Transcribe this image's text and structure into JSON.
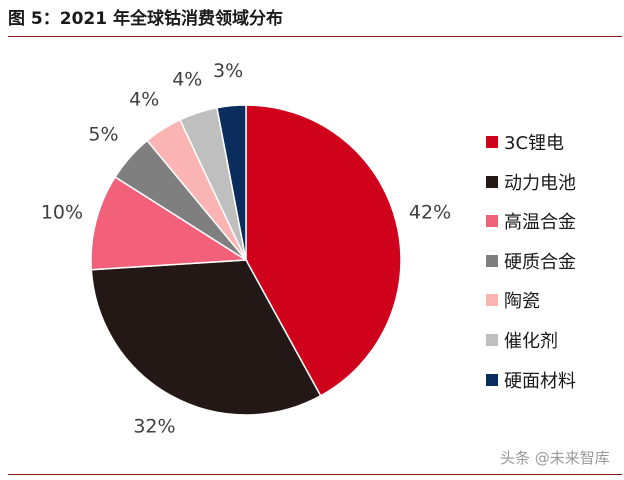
{
  "header": {
    "title": "图 5：2021 年全球钴消费领域分布"
  },
  "chart_data": {
    "type": "pie",
    "title": "图 5：2021 年全球钴消费领域分布",
    "slices": [
      {
        "label": "3C锂电",
        "value": 42,
        "display": "42%",
        "color": "#d0021b"
      },
      {
        "label": "动力电池",
        "value": 32,
        "display": "32%",
        "color": "#231815"
      },
      {
        "label": "高温合金",
        "value": 10,
        "display": "10%",
        "color": "#f2607a"
      },
      {
        "label": "硬质合金",
        "value": 5,
        "display": "5%",
        "color": "#7f7f7f"
      },
      {
        "label": "陶瓷",
        "value": 4,
        "display": "4%",
        "color": "#fbb4b4"
      },
      {
        "label": "催化剂",
        "value": 4,
        "display": "4%",
        "color": "#bfbfbf"
      },
      {
        "label": "硬面材料",
        "value": 3,
        "display": "3%",
        "color": "#0b2d5e"
      }
    ],
    "legend_position": "right"
  },
  "watermark": "头条 @未来智库"
}
